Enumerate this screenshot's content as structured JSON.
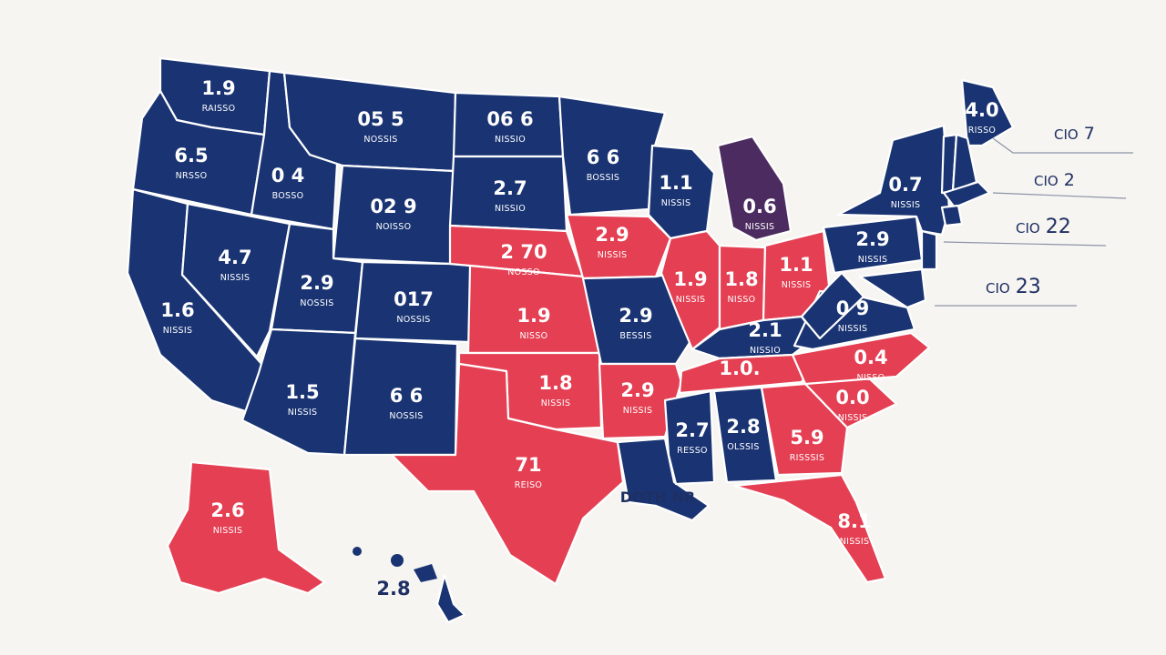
{
  "colors": {
    "blue": "#1a3473",
    "red": "#e43f52",
    "purple": "#4c2c60",
    "background": "#f6f5f1"
  },
  "states": [
    {
      "id": "wa",
      "value": "1.9",
      "caption": "RAISSO",
      "color": "blue"
    },
    {
      "id": "or",
      "value": "6.5",
      "caption": "NRSSO",
      "color": "blue"
    },
    {
      "id": "ca",
      "value": "1.6",
      "caption": "NISSIS",
      "color": "blue"
    },
    {
      "id": "id",
      "value": "0 4",
      "caption": "BOSSO",
      "color": "blue"
    },
    {
      "id": "nv",
      "value": "4.7",
      "caption": "NISSIS",
      "color": "blue"
    },
    {
      "id": "mt",
      "value": "05 5",
      "caption": "NOSSIS",
      "color": "blue"
    },
    {
      "id": "wy",
      "value": "02 9",
      "caption": "NOISSO",
      "color": "blue"
    },
    {
      "id": "ut",
      "value": "2.9",
      "caption": "NOSSIS",
      "color": "blue"
    },
    {
      "id": "az",
      "value": "1.5",
      "caption": "NISSIS",
      "color": "blue"
    },
    {
      "id": "co",
      "value": "017",
      "caption": "NOSSIS",
      "color": "blue"
    },
    {
      "id": "nm",
      "value": "6 6",
      "caption": "NOSSIS",
      "color": "blue"
    },
    {
      "id": "nd",
      "value": "06 6",
      "caption": "NISSIO",
      "color": "blue"
    },
    {
      "id": "sd",
      "value": "2.7",
      "caption": "NISSIO",
      "color": "blue"
    },
    {
      "id": "ne",
      "value": "2 70",
      "caption": "NOSSO",
      "color": "red"
    },
    {
      "id": "ks",
      "value": "1.9",
      "caption": "NISSO",
      "color": "red"
    },
    {
      "id": "ok",
      "value": "1.8",
      "caption": "NISSIS",
      "color": "red"
    },
    {
      "id": "tx",
      "value": "71",
      "caption": "REISO",
      "color": "red"
    },
    {
      "id": "mn",
      "value": "6 6",
      "caption": "BOSSIS",
      "color": "blue"
    },
    {
      "id": "ia",
      "value": "2.9",
      "caption": "NISSIS",
      "color": "red"
    },
    {
      "id": "mo",
      "value": "2.9",
      "caption": "BESSIS",
      "color": "blue"
    },
    {
      "id": "ar",
      "value": "2.9",
      "caption": "NISSIS",
      "color": "red"
    },
    {
      "id": "la",
      "value": "",
      "caption": "",
      "color": "blue"
    },
    {
      "id": "wi",
      "value": "1.1",
      "caption": "NISSIS",
      "color": "blue"
    },
    {
      "id": "mi",
      "value": "0.6",
      "caption": "NISSIS",
      "color": "purple"
    },
    {
      "id": "il",
      "value": "1.9",
      "caption": "NISSIS",
      "color": "red"
    },
    {
      "id": "in",
      "value": "1.8",
      "caption": "NISSO",
      "color": "red"
    },
    {
      "id": "oh",
      "value": "1.1",
      "caption": "NISSIS",
      "color": "red"
    },
    {
      "id": "ky",
      "value": "2.1",
      "caption": "NISSIO",
      "color": "blue"
    },
    {
      "id": "tn",
      "value": "1.0.",
      "caption": "",
      "color": "red"
    },
    {
      "id": "ms",
      "value": "2.7",
      "caption": "RESSO",
      "color": "blue"
    },
    {
      "id": "al",
      "value": "2.8",
      "caption": "OLSSIS",
      "color": "blue"
    },
    {
      "id": "ga",
      "value": "5.9",
      "caption": "RISSSIS",
      "color": "red"
    },
    {
      "id": "fl",
      "value": "8.1",
      "caption": "NISSIS",
      "color": "red"
    },
    {
      "id": "sc",
      "value": "0.0",
      "caption": "NISSIS",
      "color": "red"
    },
    {
      "id": "nc",
      "value": "0.4",
      "caption": "NISSO",
      "color": "red"
    },
    {
      "id": "va",
      "value": "0 9",
      "caption": "NISSIS",
      "color": "blue"
    },
    {
      "id": "wv",
      "value": "",
      "caption": "",
      "color": "blue"
    },
    {
      "id": "pa",
      "value": "2.9",
      "caption": "NISSIS",
      "color": "blue"
    },
    {
      "id": "ny",
      "value": "0.7",
      "caption": "NISSIS",
      "color": "blue"
    },
    {
      "id": "me",
      "value": "4.0",
      "caption": "RISSO",
      "color": "blue"
    },
    {
      "id": "vt",
      "value": "",
      "caption": "",
      "color": "blue"
    },
    {
      "id": "nh",
      "value": "",
      "caption": "",
      "color": "blue"
    },
    {
      "id": "ma",
      "value": "",
      "caption": "",
      "color": "blue"
    },
    {
      "id": "ct",
      "value": "",
      "caption": "",
      "color": "blue"
    },
    {
      "id": "nj",
      "value": "",
      "caption": "",
      "color": "blue"
    },
    {
      "id": "md",
      "value": "",
      "caption": "",
      "color": "blue"
    },
    {
      "id": "ak",
      "value": "2.6",
      "caption": "NISSIS",
      "color": "red"
    },
    {
      "id": "hi",
      "value": "2.8",
      "caption": "",
      "color": "blue"
    }
  ],
  "gulf_label": "DOTH NR",
  "callouts": [
    {
      "prefix": "CIO",
      "value": "7"
    },
    {
      "prefix": "CIO",
      "value": "2"
    },
    {
      "prefix": "CIO",
      "value": "22"
    },
    {
      "prefix": "CIO",
      "value": "23"
    }
  ]
}
